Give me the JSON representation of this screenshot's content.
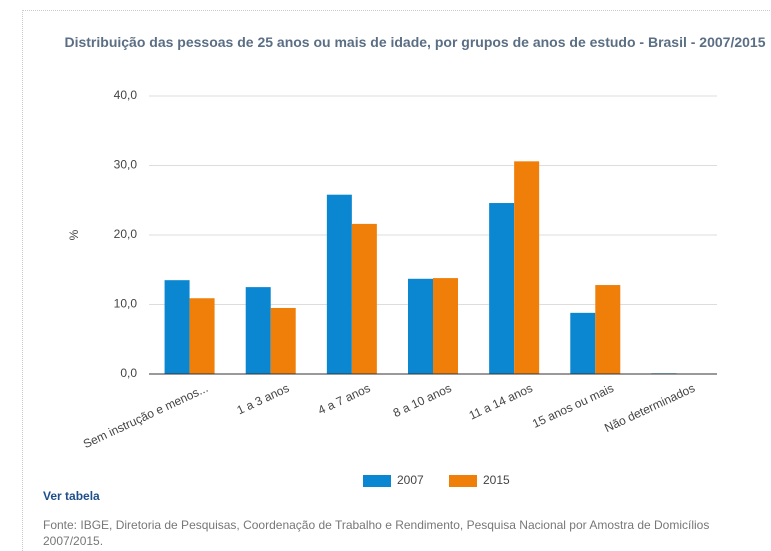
{
  "chart_data": {
    "type": "bar",
    "title": "Distribuição das pessoas de 25 anos ou mais de idade, por grupos de anos de estudo - Brasil - 2007/2015",
    "y_label": "%",
    "categories": [
      "Sem instrução e menos...",
      "1 a 3 anos",
      "4 a 7 anos",
      "8 a 10 anos",
      "11 a 14 anos",
      "15 anos ou mais",
      "Não determinados"
    ],
    "series": [
      {
        "name": "2007",
        "color": "#0a87d0",
        "values": [
          13.5,
          12.5,
          25.8,
          13.7,
          24.6,
          8.8,
          0.1
        ]
      },
      {
        "name": "2015",
        "color": "#f07f09",
        "values": [
          10.9,
          9.5,
          21.6,
          13.8,
          30.6,
          12.8,
          0
        ]
      }
    ],
    "ylim": [
      0,
      40
    ],
    "yticks": [
      {
        "value": 0,
        "label": "0,0"
      },
      {
        "value": 10,
        "label": "10,0"
      },
      {
        "value": 20,
        "label": "20,0"
      },
      {
        "value": 30,
        "label": "30,0"
      },
      {
        "value": 40,
        "label": "40,0"
      }
    ],
    "grid": true
  },
  "link": "Ver tabela",
  "source": "Fonte: IBGE, Diretoria de Pesquisas, Coordenação de Trabalho e Rendimento, Pesquisa Nacional por Amostra de Domicílios 2007/2015."
}
